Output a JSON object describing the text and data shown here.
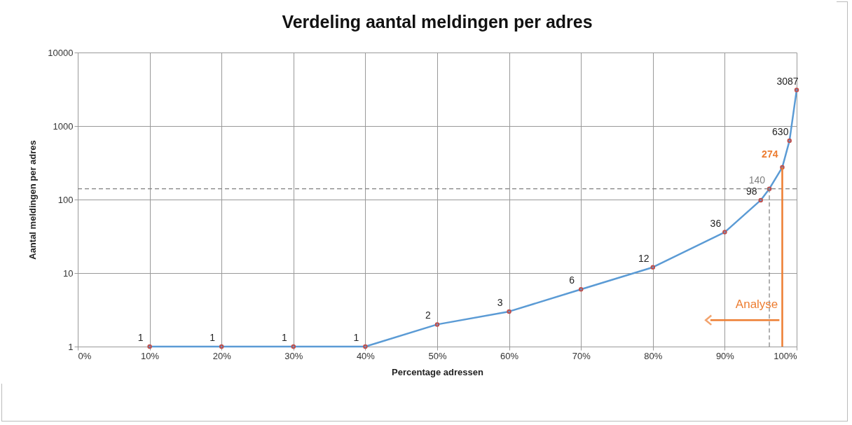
{
  "chart_data": {
    "type": "line",
    "title": "Verdeling aantal meldingen per adres",
    "xlabel": "Percentage adressen",
    "ylabel": "Aantal meldingen per adres",
    "x": [
      10,
      20,
      30,
      40,
      50,
      60,
      70,
      80,
      90,
      95,
      96.2,
      98,
      99,
      100
    ],
    "series": [
      {
        "color": "#5b9bd5",
        "values": [
          1,
          1,
          1,
          1,
          2,
          3,
          6,
          12,
          36,
          98,
          140,
          274,
          630,
          3087
        ],
        "value_labels": [
          "1",
          "1",
          "1",
          "1",
          "2",
          "3",
          "6",
          "12",
          "36",
          "98",
          null,
          null,
          "630",
          "3087"
        ]
      }
    ],
    "annotations": [
      {
        "text": "140",
        "x": 96.2,
        "y": 140
      },
      {
        "text": "274",
        "x": 98,
        "y": 274
      }
    ],
    "ref_lines": [
      {
        "axis": "y",
        "value": 140,
        "color": "#7f7f7f",
        "line_style": "dashed"
      },
      {
        "axis": "x",
        "value": 96.2,
        "color": "#7f7f7f",
        "line_style": "dashed"
      },
      {
        "axis": "x",
        "value": 98,
        "label": "Analyse",
        "color": "#ed7d31",
        "line_style": "solid"
      }
    ],
    "xlim": [
      0,
      100
    ],
    "xticks": [
      {
        "value": 0,
        "label": "0%"
      },
      {
        "value": 10,
        "label": "10%"
      },
      {
        "value": 20,
        "label": "20%"
      },
      {
        "value": 30,
        "label": "30%"
      },
      {
        "value": 40,
        "label": "40%"
      },
      {
        "value": 50,
        "label": "50%"
      },
      {
        "value": 60,
        "label": "60%"
      },
      {
        "value": 70,
        "label": "70%"
      },
      {
        "value": 80,
        "label": "80%"
      },
      {
        "value": 90,
        "label": "90%"
      },
      {
        "value": 100,
        "label": "100%"
      }
    ],
    "ylim": [
      1,
      10000
    ],
    "yticks": [
      1,
      10,
      100,
      1000,
      10000
    ],
    "log": "y",
    "grid": true,
    "marker": "circle",
    "line_style": "solid"
  }
}
